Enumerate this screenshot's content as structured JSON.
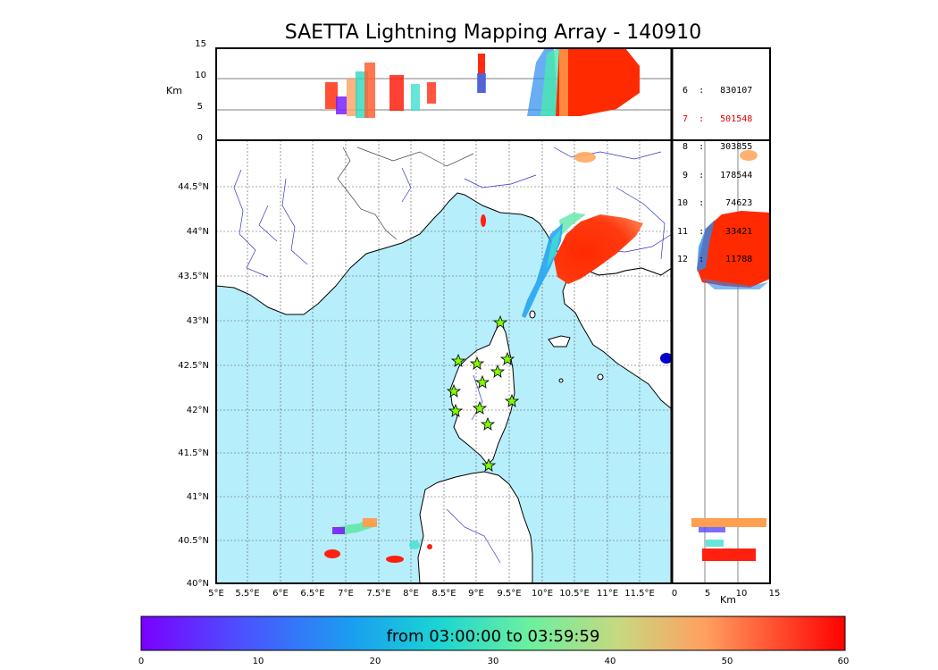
{
  "title": "SAETTA Lightning Mapping Array - 140910",
  "axes": {
    "top_alt_label": "Km",
    "right_alt_label": "Km",
    "alt_ticks": [
      "15",
      "10",
      "5",
      "0"
    ],
    "lat_ticks": [
      "44.5°N",
      "44°N",
      "43.5°N",
      "43°N",
      "42.5°N",
      "42°N",
      "41.5°N",
      "41°N",
      "40.5°N",
      "40°N"
    ],
    "lon_ticks": [
      "5°E",
      "5.5°E",
      "6°E",
      "6.5°E",
      "7°E",
      "7.5°E",
      "8°E",
      "8.5°E",
      "9°E",
      "9.5°E",
      "10°E",
      "10.5°E",
      "11°E",
      "11.5°E"
    ],
    "right_x_ticks": [
      "0",
      "5",
      "10",
      "15"
    ]
  },
  "stations_table": [
    {
      "label": " 6  :   830107",
      "color": "#000000"
    },
    {
      "label": " 7  :   501548",
      "color": "#e00000"
    },
    {
      "label": " 8  :   303855",
      "color": "#000000"
    },
    {
      "label": " 9  :   178544",
      "color": "#000000"
    },
    {
      "label": "10  :    74623",
      "color": "#000000"
    },
    {
      "label": "11  :    33421",
      "color": "#000000"
    },
    {
      "label": "12  :    11788",
      "color": "#000000"
    }
  ],
  "colorbar": {
    "label": "from 03:00:00 to 03:59:59",
    "ticks": [
      "0",
      "10",
      "20",
      "30",
      "40",
      "50",
      "60"
    ]
  },
  "colors": {
    "sea": "#b7eefb",
    "land": "#ffffff",
    "river": "#3333cc",
    "border": "#444444",
    "star": "#7fff00"
  }
}
